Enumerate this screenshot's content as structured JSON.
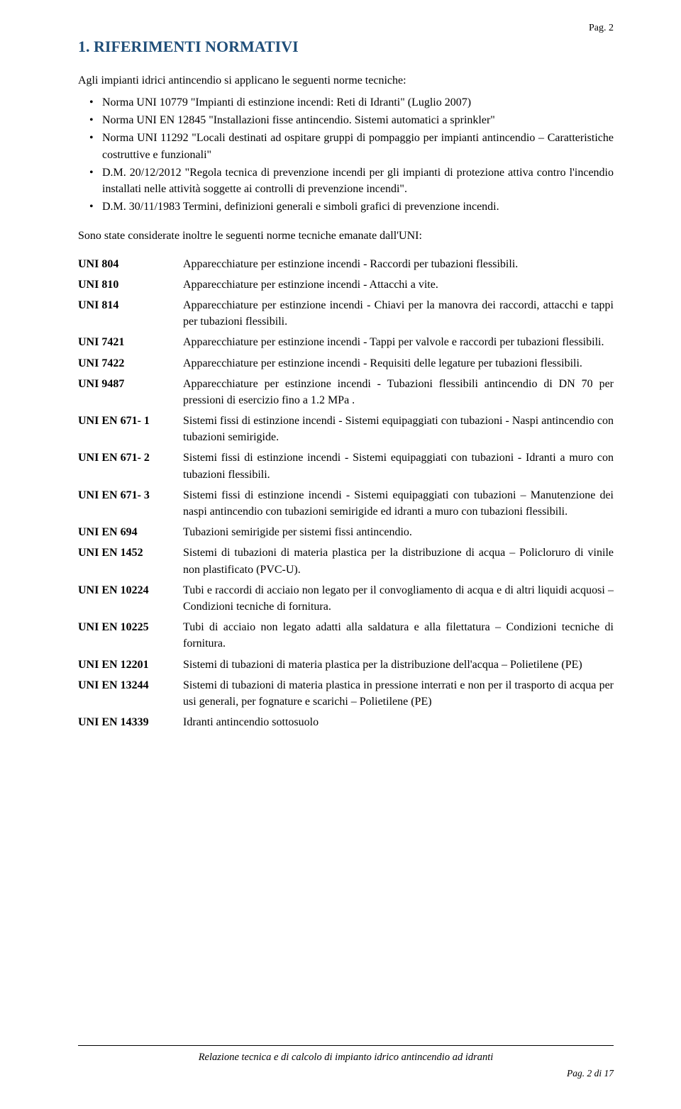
{
  "page_num_top": "Pag. 2",
  "heading": "1. RIFERIMENTI NORMATIVI",
  "intro": "Agli  impianti idrici antincendio si applicano le seguenti norme tecniche:",
  "norms": [
    "Norma UNI 10779 \"Impianti di estinzione incendi: Reti di Idranti\" (Luglio 2007)",
    "Norma UNI EN 12845 \"Installazioni fisse antincendio. Sistemi automatici a sprinkler\"",
    "Norma UNI 11292 \"Locali destinati ad ospitare gruppi di pompaggio per impianti antincendio – Caratteristiche costruttive e funzionali\"",
    "D.M. 20/12/2012 \"Regola tecnica di prevenzione incendi per gli impianti di protezione attiva contro l'incendio installati nelle attività soggette ai controlli di prevenzione incendi\".",
    "D.M. 30/11/1983 Termini, definizioni generali e simboli grafici di prevenzione incendi."
  ],
  "consider": "Sono state considerate inoltre le seguenti norme tecniche emanate dall'UNI:",
  "defs": [
    {
      "t": "UNI 804",
      "d": "Apparecchiature per estinzione incendi - Raccordi per tubazioni flessibili."
    },
    {
      "t": "UNI 810",
      "d": "Apparecchiature per estinzione incendi - Attacchi a vite."
    },
    {
      "t": "UNI 814",
      "d": "Apparecchiature per estinzione incendi - Chiavi per la manovra dei raccordi, attacchi e tappi per tubazioni flessibili."
    },
    {
      "t": "UNI 7421",
      "d": "Apparecchiature per estinzione incendi - Tappi per valvole e raccordi per tubazioni flessibili."
    },
    {
      "t": "UNI 7422",
      "d": "Apparecchiature per estinzione incendi - Requisiti delle legature per tubazioni flessibili."
    },
    {
      "t": "UNI 9487",
      "d": "Apparecchiature per estinzione incendi - Tubazioni flessibili antincendio di DN 70 per pressioni di esercizio fino a 1.2 MPa ."
    },
    {
      "t": "UNI EN 671- 1",
      "d": "Sistemi fissi di estinzione incendi - Sistemi equipaggiati con tubazioni - Naspi antincendio con tubazioni semirigide."
    },
    {
      "t": "UNI EN 671- 2",
      "d": "Sistemi fissi di estinzione incendi - Sistemi equipaggiati con tubazioni - Idranti a muro con tubazioni flessibili."
    },
    {
      "t": "UNI EN 671- 3",
      "d": "Sistemi fissi di estinzione incendi - Sistemi equipaggiati con tubazioni – Manutenzione dei naspi antincendio con tubazioni semirigide ed idranti a muro con tubazioni flessibili."
    },
    {
      "t": "UNI EN 694",
      "d": "Tubazioni semirigide per sistemi fissi antincendio."
    },
    {
      "t": "UNI EN 1452",
      "d": "Sistemi di tubazioni di materia plastica per la distribuzione di acqua – Policloruro di vinile non plastificato (PVC-U)."
    },
    {
      "t": "UNI EN 10224",
      "d": "Tubi e raccordi di acciaio non legato per il convogliamento di acqua e di altri liquidi acquosi – Condizioni tecniche di fornitura."
    },
    {
      "t": "UNI EN 10225",
      "d": "Tubi di acciaio non legato adatti alla saldatura e alla filettatura – Condizioni tecniche di fornitura."
    },
    {
      "t": "UNI EN 12201",
      "d": "Sistemi di tubazioni di materia plastica per la distribuzione dell'acqua – Polietilene (PE)"
    },
    {
      "t": "UNI EN 13244",
      "d": "Sistemi di tubazioni di materia plastica in pressione interrati e non per il trasporto di acqua per usi generali, per fognature e scarichi – Polietilene (PE)"
    },
    {
      "t": "UNI EN 14339",
      "d": "Idranti antincendio sottosuolo"
    }
  ],
  "footer_title": "Relazione tecnica e di calcolo di impianto idrico antincendio ad idranti",
  "footer_page": "Pag. 2 di 17"
}
